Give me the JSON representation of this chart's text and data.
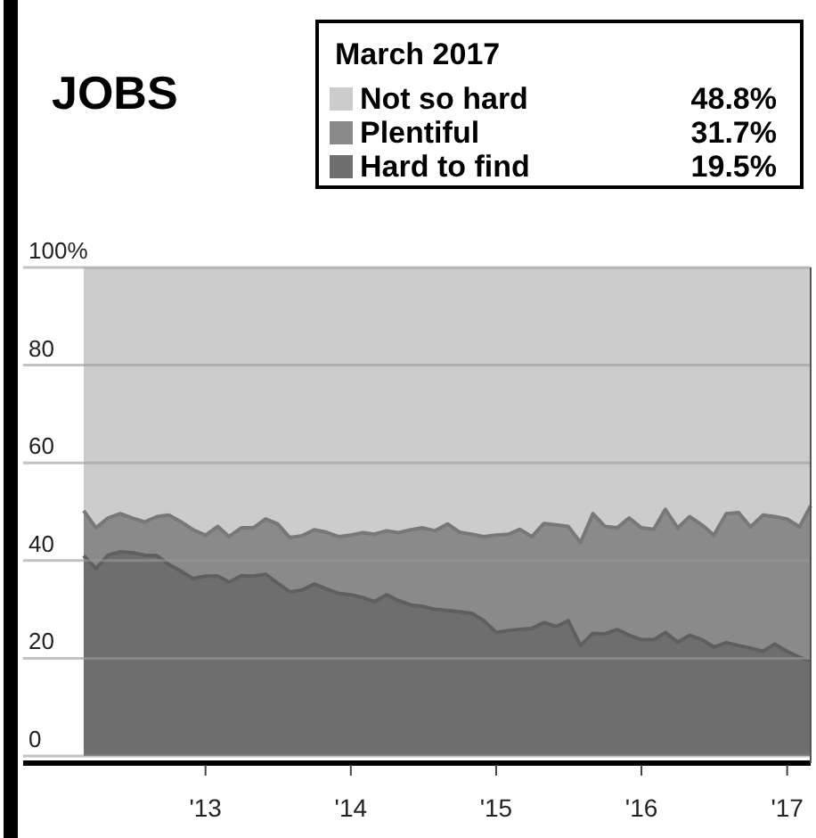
{
  "chart_data": {
    "type": "area",
    "title": "JOBS",
    "stacked": true,
    "legend": "top right",
    "legend_title": "March 2017",
    "grid": "y",
    "x": [
      "2012-03",
      "2012-04",
      "2012-05",
      "2012-06",
      "2012-07",
      "2012-08",
      "2012-09",
      "2012-10",
      "2012-11",
      "2012-12",
      "2013-01",
      "2013-02",
      "2013-03",
      "2013-04",
      "2013-05",
      "2013-06",
      "2013-07",
      "2013-08",
      "2013-09",
      "2013-10",
      "2013-11",
      "2013-12",
      "2014-01",
      "2014-02",
      "2014-03",
      "2014-04",
      "2014-05",
      "2014-06",
      "2014-07",
      "2014-08",
      "2014-09",
      "2014-10",
      "2014-11",
      "2014-12",
      "2015-01",
      "2015-02",
      "2015-03",
      "2015-04",
      "2015-05",
      "2015-06",
      "2015-07",
      "2015-08",
      "2015-09",
      "2015-10",
      "2015-11",
      "2015-12",
      "2016-01",
      "2016-02",
      "2016-03",
      "2016-04",
      "2016-05",
      "2016-06",
      "2016-07",
      "2016-08",
      "2016-09",
      "2016-10",
      "2016-11",
      "2016-12",
      "2017-01",
      "2017-02",
      "2017-03"
    ],
    "xlim": [
      "2011-10",
      "2017-03"
    ],
    "xticks": [
      {
        "value": "2013-01",
        "label": "'13"
      },
      {
        "value": "2014-01",
        "label": "'14"
      },
      {
        "value": "2015-01",
        "label": "'15"
      },
      {
        "value": "2016-01",
        "label": "'16"
      },
      {
        "value": "2017-01",
        "label": "'17"
      }
    ],
    "ylim": [
      0,
      100
    ],
    "yticks": [
      0,
      20,
      40,
      60,
      80,
      {
        "value": 100,
        "label": "100%"
      }
    ],
    "series": [
      {
        "name": "Hard to find",
        "color": "#6e6e6e",
        "values": [
          41.0,
          38.4,
          41.1,
          41.8,
          41.6,
          41.1,
          41.0,
          39.2,
          37.8,
          36.3,
          36.8,
          36.8,
          35.6,
          36.9,
          36.8,
          37.2,
          35.4,
          33.6,
          34.0,
          35.2,
          34.2,
          33.3,
          33.0,
          32.4,
          31.6,
          33.0,
          31.8,
          30.9,
          30.6,
          30.0,
          29.8,
          29.5,
          29.2,
          27.7,
          25.3,
          25.7,
          25.9,
          26.1,
          27.3,
          26.5,
          27.7,
          22.6,
          25.1,
          25.0,
          25.9,
          24.7,
          23.8,
          23.8,
          25.3,
          23.3,
          24.7,
          23.8,
          22.3,
          23.2,
          22.6,
          22.1,
          21.4,
          22.9,
          21.4,
          20.2,
          19.5
        ]
      },
      {
        "name": "Plentiful",
        "color": "#8a8a8a",
        "values": [
          9.2,
          8.3,
          7.6,
          7.8,
          7.1,
          6.8,
          8.0,
          10.1,
          10.1,
          10.0,
          8.4,
          10.2,
          9.3,
          9.8,
          9.9,
          11.3,
          12.1,
          11.1,
          11.1,
          11.1,
          11.6,
          11.6,
          12.2,
          13.3,
          13.8,
          13.1,
          13.9,
          15.4,
          16.1,
          16.1,
          17.7,
          16.3,
          16.2,
          17.2,
          19.9,
          19.7,
          20.5,
          18.8,
          20.3,
          20.8,
          19.3,
          21.1,
          24.5,
          22.0,
          20.8,
          24.0,
          22.9,
          22.6,
          25.2,
          23.4,
          24.3,
          23.5,
          22.9,
          26.4,
          27.2,
          24.8,
          27.9,
          26.1,
          27.1,
          26.7,
          31.7
        ]
      },
      {
        "name": "Not so hard",
        "color": "#cccccc",
        "values": [
          49.8,
          53.3,
          51.3,
          50.4,
          51.3,
          52.1,
          51.0,
          50.7,
          52.1,
          53.7,
          54.8,
          53.0,
          55.1,
          53.3,
          53.3,
          51.5,
          52.5,
          55.3,
          54.9,
          53.7,
          54.2,
          55.1,
          54.8,
          54.3,
          54.6,
          53.9,
          54.3,
          53.7,
          53.3,
          53.9,
          52.5,
          54.2,
          54.6,
          55.1,
          54.8,
          54.6,
          53.6,
          55.1,
          52.4,
          52.7,
          53.0,
          56.3,
          50.4,
          53.0,
          53.3,
          51.3,
          53.3,
          53.6,
          49.5,
          53.3,
          51.0,
          52.7,
          54.8,
          50.4,
          50.2,
          53.1,
          50.7,
          51.0,
          51.5,
          53.1,
          48.8
        ]
      }
    ],
    "annotations": [
      "48.8%",
      "31.7%",
      "19.5%"
    ]
  }
}
